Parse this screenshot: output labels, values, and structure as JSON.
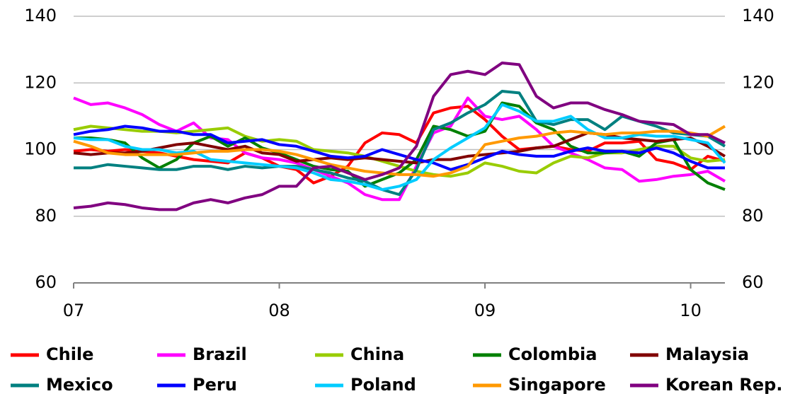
{
  "chart_data": {
    "type": "line",
    "x": [
      0,
      1,
      2,
      3,
      4,
      5,
      6,
      7,
      8,
      9,
      10,
      11,
      12,
      13,
      14,
      15,
      16,
      17,
      18,
      19,
      20,
      21,
      22,
      23,
      24,
      25,
      26,
      27,
      28,
      29,
      30,
      31,
      32,
      33,
      34,
      35,
      36,
      37,
      38
    ],
    "xlim": [
      0,
      38
    ],
    "xticks": [
      {
        "value": 0,
        "label": "07"
      },
      {
        "value": 12,
        "label": "08"
      },
      {
        "value": 24,
        "label": "09"
      },
      {
        "value": 36,
        "label": "10"
      }
    ],
    "ylim": [
      60,
      140
    ],
    "yticks": [
      60,
      80,
      100,
      120,
      140
    ],
    "y2lim": [
      60,
      140
    ],
    "y2ticks": [
      60,
      80,
      100,
      120,
      140
    ],
    "grid": true,
    "series": [
      {
        "name": "Chile",
        "color": "#ff0000",
        "values": [
          99.5,
          100,
          99.5,
          100,
          99.5,
          99,
          98,
          97,
          96.5,
          96,
          99,
          97.5,
          95,
          94,
          90,
          92,
          95,
          102,
          105,
          104.5,
          102,
          111,
          112.5,
          113,
          109,
          104,
          100,
          100.5,
          101,
          100,
          99.5,
          102,
          102,
          102.5,
          97,
          96,
          94,
          98,
          96.5
        ]
      },
      {
        "name": "Brazil",
        "color": "#ff00ff",
        "values": [
          115.5,
          113.5,
          114,
          112.5,
          110.5,
          107.5,
          105.5,
          108,
          103.5,
          103,
          99,
          97.5,
          97,
          96,
          94,
          92,
          90,
          86.5,
          85,
          85,
          95,
          105,
          107,
          115.5,
          110,
          109,
          110,
          106,
          101,
          99,
          97,
          94.5,
          94,
          90.5,
          91,
          92,
          92.5,
          93.5,
          90.5
        ]
      },
      {
        "name": "China",
        "color": "#99cc00",
        "values": [
          106,
          107,
          106.5,
          106,
          105.5,
          105.5,
          105,
          105.5,
          106,
          106.5,
          104,
          102.5,
          103,
          102.5,
          100,
          99.5,
          99,
          98,
          96.5,
          95,
          93.5,
          92.5,
          92,
          93,
          96,
          95,
          93.5,
          93,
          96,
          98,
          97.5,
          99,
          99,
          100,
          101,
          101,
          97.5,
          96.5,
          97
        ]
      },
      {
        "name": "Colombia",
        "color": "#008000",
        "values": [
          103.5,
          103.5,
          103,
          102,
          97.5,
          94.5,
          97,
          102,
          104,
          101,
          103.5,
          100.5,
          99,
          97,
          95,
          94,
          93.5,
          89,
          91,
          93,
          97,
          107,
          106,
          104,
          105.5,
          114,
          113,
          108,
          106,
          101,
          99,
          99,
          99.5,
          98,
          102,
          103,
          94,
          90,
          88
        ]
      },
      {
        "name": "Malaysia",
        "color": "#800000",
        "values": [
          99,
          98.5,
          99,
          99,
          99.5,
          100.5,
          101.5,
          102,
          101,
          100,
          101,
          99,
          98.5,
          96.5,
          97,
          97.5,
          97,
          97.5,
          97,
          96.5,
          96,
          97,
          97,
          98,
          98.5,
          99,
          99.5,
          100.5,
          101,
          103,
          105,
          104.5,
          103.5,
          103,
          102.5,
          103,
          103.5,
          101,
          98
        ]
      },
      {
        "name": "Mexico",
        "color": "#008080",
        "values": [
          94.5,
          94.5,
          95.5,
          95,
          94.5,
          94,
          94,
          95,
          95,
          94,
          95,
          94.5,
          95,
          95,
          94,
          93,
          91.5,
          90.5,
          88,
          86.5,
          94,
          106,
          108,
          111,
          113.5,
          117.5,
          117,
          108.5,
          107.5,
          109,
          109,
          106,
          110,
          108.5,
          107,
          105,
          104.5,
          104,
          101
        ]
      },
      {
        "name": "Peru",
        "color": "#0000ff",
        "values": [
          104.5,
          105.5,
          106,
          107,
          106.5,
          105.5,
          105.5,
          104.5,
          104.5,
          102,
          102.5,
          103,
          101.5,
          101,
          99.5,
          98,
          97.5,
          98,
          100,
          98.5,
          97,
          96,
          94,
          95.5,
          97.5,
          99.5,
          98.5,
          98,
          98,
          99.5,
          100.5,
          99.5,
          99.5,
          99,
          100.5,
          99,
          96.5,
          94.5,
          94.5
        ]
      },
      {
        "name": "Poland",
        "color": "#00ccff",
        "values": [
          103.5,
          103,
          103,
          101,
          100,
          100,
          99,
          99.5,
          97,
          96.5,
          96,
          95.5,
          95,
          94.5,
          93,
          91,
          90.5,
          89.5,
          88,
          89,
          91,
          97,
          100.5,
          103.5,
          106.5,
          113.5,
          111.5,
          108.5,
          108.5,
          110,
          106,
          103.5,
          103.5,
          104.5,
          104,
          104,
          103,
          102,
          96
        ]
      },
      {
        "name": "Singapore",
        "color": "#ff9900",
        "values": [
          102.5,
          101,
          99,
          98.5,
          98.5,
          98.5,
          98.5,
          99,
          99.5,
          99.5,
          100,
          100,
          99.5,
          98.5,
          97,
          95.5,
          94.5,
          93.5,
          93,
          92.5,
          92.5,
          92,
          93,
          95,
          101.5,
          102.5,
          103.5,
          104,
          105,
          105.5,
          105,
          104.5,
          105,
          105,
          105.5,
          105.5,
          105,
          104,
          107
        ]
      },
      {
        "name": "Korean Rep.",
        "color": "#800080",
        "values": [
          82.5,
          83,
          84,
          83.5,
          82.5,
          82,
          82,
          84,
          85,
          84,
          85.5,
          86.5,
          89,
          89,
          94.5,
          95,
          93,
          91,
          92.5,
          94.5,
          101,
          116,
          122.5,
          123.5,
          122.5,
          126,
          125.5,
          116,
          112.5,
          114,
          114,
          112,
          110.5,
          108.5,
          108,
          107.5,
          104.5,
          104.5,
          102
        ]
      }
    ]
  }
}
